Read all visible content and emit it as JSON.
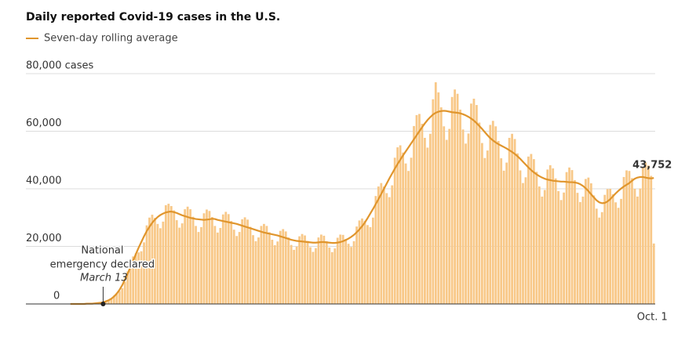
{
  "chart_data": {
    "type": "bar-line",
    "title": "Daily reported Covid-19 cases in the U.S.",
    "categories": [
      null,
      null,
      null,
      null,
      null,
      null,
      null,
      null,
      null,
      null,
      null,
      null,
      "March 13",
      null,
      null,
      null,
      null,
      null,
      null,
      null,
      null,
      null,
      null,
      null,
      null,
      null,
      null,
      null,
      null,
      null,
      null,
      null,
      null,
      null,
      null,
      null,
      null,
      null,
      null,
      null,
      null,
      null,
      null,
      null,
      null,
      null,
      null,
      null,
      null,
      null,
      null,
      null,
      null,
      null,
      null,
      null,
      null,
      null,
      null,
      null,
      null,
      null,
      null,
      null,
      null,
      null,
      null,
      null,
      null,
      null,
      null,
      null,
      null,
      null,
      null,
      null,
      null,
      null,
      null,
      null,
      null,
      null,
      null,
      null,
      null,
      null,
      null,
      null,
      null,
      null,
      null,
      null,
      null,
      null,
      null,
      null,
      null,
      null,
      null,
      null,
      null,
      null,
      null,
      null,
      null,
      null,
      null,
      null,
      null,
      null,
      null,
      null,
      null,
      null,
      null,
      null,
      null,
      null,
      null,
      null,
      null,
      null,
      null,
      null,
      null,
      null,
      null,
      null,
      null,
      null,
      null,
      null,
      null,
      null,
      null,
      null,
      null,
      null,
      null,
      null,
      null,
      null,
      null,
      null,
      null,
      null,
      null,
      null,
      null,
      null,
      null,
      null,
      null,
      null,
      null,
      null,
      null,
      null,
      null,
      null,
      null,
      null,
      null,
      null,
      null,
      null,
      null,
      null,
      null,
      null,
      null,
      null,
      null,
      null,
      null,
      null,
      null,
      null,
      null,
      null,
      null,
      null,
      null,
      null,
      null,
      null,
      null,
      null,
      null,
      null,
      null,
      null,
      null,
      null,
      null,
      null,
      null,
      null,
      null,
      null,
      null,
      null,
      null,
      null,
      null,
      null,
      null,
      null,
      null,
      null,
      null,
      null,
      null,
      null,
      "Oct. 1"
    ],
    "annotation": [
      "National",
      "emergency declared"
    ],
    "series": [
      {
        "color": "#f8c888",
        "values": [
          0,
          0,
          0,
          0,
          0,
          0,
          100,
          100,
          100,
          200,
          300,
          400,
          500,
          800,
          1400,
          2000,
          2900,
          3700,
          4500,
          5500,
          7700,
          11300,
          14300,
          16500,
          17600,
          17900,
          18300,
          21400,
          27300,
          30000,
          31000,
          29900,
          27800,
          26300,
          28600,
          34300,
          34800,
          34000,
          32500,
          29100,
          26500,
          28000,
          32900,
          33800,
          32900,
          30300,
          27100,
          25000,
          26700,
          31500,
          32800,
          32300,
          30200,
          27100,
          24800,
          26400,
          31100,
          32000,
          31200,
          28800,
          25800,
          23600,
          25000,
          29400,
          30100,
          29300,
          26800,
          23900,
          21800,
          23100,
          27100,
          27800,
          27100,
          24900,
          22300,
          20400,
          21700,
          25400,
          26000,
          25200,
          23100,
          20500,
          18800,
          19900,
          23500,
          24300,
          23800,
          21900,
          19700,
          18100,
          19400,
          23100,
          24100,
          23700,
          21800,
          19600,
          18000,
          19300,
          23000,
          24100,
          24000,
          22600,
          20900,
          19800,
          21800,
          26900,
          29000,
          29700,
          28900,
          27400,
          26700,
          30000,
          37500,
          40800,
          42000,
          40800,
          38500,
          37100,
          41200,
          50800,
          54400,
          55100,
          52600,
          48800,
          46200,
          50800,
          61800,
          65600,
          66000,
          62600,
          57700,
          54300,
          59100,
          71100,
          77000,
          73500,
          68300,
          61700,
          57000,
          60800,
          71900,
          74500,
          73000,
          67500,
          60600,
          55700,
          59200,
          69600,
          71300,
          69100,
          63000,
          55900,
          50700,
          53300,
          62200,
          63600,
          61700,
          56600,
          50600,
          46300,
          49100,
          57700,
          59100,
          57300,
          52300,
          46400,
          42000,
          44000,
          51200,
          52100,
          50300,
          45900,
          40800,
          37300,
          39600,
          46700,
          48200,
          47100,
          43600,
          39200,
          36100,
          38700,
          45800,
          47400,
          46500,
          43000,
          38600,
          35400,
          37300,
          43400,
          43900,
          41900,
          37700,
          33100,
          30000,
          31900,
          37900,
          39900,
          40000,
          38100,
          35300,
          33400,
          36500,
          44100,
          46400,
          46200,
          43700,
          40000,
          37300,
          40100,
          47600,
          49200,
          48100,
          44500,
          21000
        ]
      },
      {
        "name": "Seven-day rolling average",
        "color": "#e0952c",
        "values": [
          0,
          0,
          0,
          0,
          0,
          0,
          100,
          100,
          100,
          200,
          300,
          400,
          600,
          900,
          1300,
          1800,
          2600,
          3600,
          4900,
          6500,
          8500,
          10500,
          12800,
          15000,
          17300,
          19500,
          21500,
          23500,
          25300,
          26800,
          28200,
          29300,
          30200,
          30900,
          31400,
          31800,
          32000,
          32100,
          31900,
          31600,
          31200,
          30800,
          30500,
          30200,
          29900,
          29700,
          29500,
          29400,
          29300,
          29200,
          29300,
          29400,
          29600,
          29500,
          29200,
          29000,
          28800,
          28600,
          28400,
          28200,
          28000,
          27800,
          27500,
          27200,
          26900,
          26600,
          26300,
          26000,
          25700,
          25400,
          25100,
          24800,
          24600,
          24400,
          24200,
          24000,
          23800,
          23500,
          23200,
          22900,
          22600,
          22300,
          22100,
          21900,
          21800,
          21700,
          21600,
          21500,
          21400,
          21300,
          21300,
          21400,
          21500,
          21500,
          21400,
          21300,
          21200,
          21200,
          21300,
          21500,
          21800,
          22200,
          22700,
          23300,
          24000,
          24900,
          25900,
          27000,
          28300,
          29800,
          31400,
          33000,
          34700,
          36400,
          38200,
          40000,
          41800,
          43600,
          45300,
          47000,
          48600,
          50100,
          51600,
          53000,
          54400,
          55800,
          57200,
          58600,
          60000,
          61400,
          62700,
          63900,
          64900,
          65800,
          66400,
          66800,
          67000,
          67100,
          67000,
          66800,
          66600,
          66500,
          66400,
          66200,
          65900,
          65500,
          65000,
          64400,
          63700,
          62800,
          61800,
          60800,
          59700,
          58600,
          57600,
          56800,
          56100,
          55500,
          55000,
          54500,
          54000,
          53400,
          52800,
          52100,
          51300,
          50400,
          49400,
          48400,
          47400,
          46500,
          45700,
          45000,
          44400,
          43900,
          43500,
          43200,
          43000,
          42800,
          42700,
          42600,
          42500,
          42500,
          42400,
          42300,
          42300,
          42200,
          42000,
          41600,
          41000,
          40200,
          39200,
          38100,
          37000,
          36000,
          35300,
          35000,
          35100,
          35600,
          36400,
          37400,
          38400,
          39300,
          40100,
          40800,
          41400,
          42000,
          42800,
          43500,
          43900,
          44100,
          44100,
          43900,
          43700,
          43600,
          43752
        ],
        "value_labels": [
          null,
          null,
          null,
          null,
          null,
          null,
          null,
          null,
          null,
          null,
          null,
          null,
          null,
          null,
          null,
          null,
          null,
          null,
          null,
          null,
          null,
          null,
          null,
          null,
          null,
          null,
          null,
          null,
          null,
          null,
          null,
          null,
          null,
          null,
          null,
          null,
          null,
          null,
          null,
          null,
          null,
          null,
          null,
          null,
          null,
          null,
          null,
          null,
          null,
          null,
          null,
          null,
          null,
          null,
          null,
          null,
          null,
          null,
          null,
          null,
          null,
          null,
          null,
          null,
          null,
          null,
          null,
          null,
          null,
          null,
          null,
          null,
          null,
          null,
          null,
          null,
          null,
          null,
          null,
          null,
          null,
          null,
          null,
          null,
          null,
          null,
          null,
          null,
          null,
          null,
          null,
          null,
          null,
          null,
          null,
          null,
          null,
          null,
          null,
          null,
          null,
          null,
          null,
          null,
          null,
          null,
          null,
          null,
          null,
          null,
          null,
          null,
          null,
          null,
          null,
          null,
          null,
          null,
          null,
          null,
          null,
          null,
          null,
          null,
          null,
          null,
          null,
          null,
          null,
          null,
          null,
          null,
          null,
          null,
          null,
          null,
          null,
          null,
          null,
          null,
          null,
          null,
          null,
          null,
          null,
          null,
          null,
          null,
          null,
          null,
          null,
          null,
          null,
          null,
          null,
          null,
          null,
          null,
          null,
          null,
          null,
          null,
          null,
          null,
          null,
          null,
          null,
          null,
          null,
          null,
          null,
          null,
          null,
          null,
          null,
          null,
          null,
          null,
          null,
          null,
          null,
          null,
          null,
          null,
          null,
          null,
          null,
          null,
          null,
          null,
          null,
          null,
          null,
          null,
          null,
          null,
          null,
          null,
          null,
          null,
          null,
          null,
          null,
          null,
          null,
          null,
          null,
          null,
          null,
          null,
          null,
          null,
          null,
          null,
          "43,752"
        ]
      }
    ],
    "ylim": [
      0,
      80000
    ],
    "yticks": [
      0,
      {
        "value": 20000,
        "label": "20,000"
      },
      {
        "value": 40000,
        "label": "40,000"
      },
      {
        "value": 60000,
        "label": "60,000"
      },
      {
        "value": 80000,
        "label": "80,000 cases"
      }
    ],
    "grid": true
  }
}
